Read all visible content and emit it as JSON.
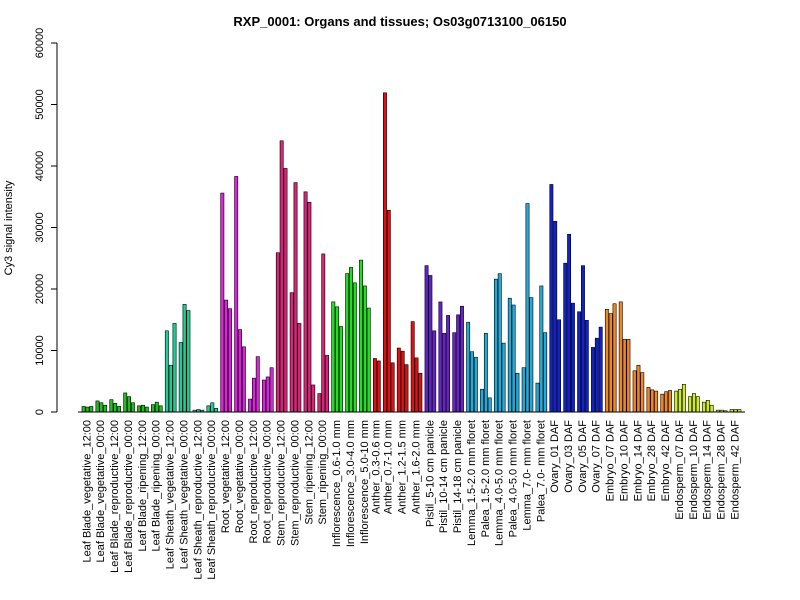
{
  "chart_data": {
    "type": "bar",
    "title": "RXP_0001: Organs and tissues; Os03g0713100_06150",
    "ylabel": "Cy3 signal intensity",
    "xlabel": "",
    "ylim": [
      0,
      60000
    ],
    "yticks": [
      0,
      10000,
      20000,
      30000,
      40000,
      50000,
      60000
    ],
    "grid": false,
    "groups": [
      {
        "label": "Leaf Blade_vegetative_12:00",
        "color": "#22bb22",
        "values": [
          900,
          800,
          900
        ]
      },
      {
        "label": "Leaf Blade_vegetative_00:00",
        "color": "#22bb22",
        "values": [
          1800,
          1500,
          1100
        ]
      },
      {
        "label": "Leaf Blade_reproductive_12:00",
        "color": "#22bb22",
        "values": [
          2000,
          1400,
          900
        ]
      },
      {
        "label": "Leaf Blade_reproductive_00:00",
        "color": "#22bb22",
        "values": [
          3100,
          2500,
          1500
        ]
      },
      {
        "label": "Leaf Blade_ripening_12:00",
        "color": "#22bb22",
        "values": [
          1000,
          1100,
          800
        ]
      },
      {
        "label": "Leaf Blade_ripening_00:00",
        "color": "#22bb22",
        "values": [
          1200,
          1600,
          1000
        ]
      },
      {
        "label": "Leaf Sheath_vegetative_12:00",
        "color": "#22cc99",
        "values": [
          13200,
          7600,
          14400
        ]
      },
      {
        "label": "Leaf Sheath_vegetative_00:00",
        "color": "#22cc99",
        "values": [
          11300,
          17500,
          16500
        ]
      },
      {
        "label": "Leaf Sheath_reproductive_12:00",
        "color": "#22cc99",
        "values": [
          300,
          400,
          300
        ]
      },
      {
        "label": "Leaf Sheath_reproductive_00:00",
        "color": "#22cc99",
        "values": [
          1000,
          1500,
          600
        ]
      },
      {
        "label": "Root_vegetative_12:00",
        "color": "#dd22dd",
        "values": [
          35600,
          18200,
          16800
        ]
      },
      {
        "label": "Root_vegetative_00:00",
        "color": "#dd22dd",
        "values": [
          38300,
          13400,
          10600
        ]
      },
      {
        "label": "Root_reproductive_12:00",
        "color": "#dd22dd",
        "values": [
          2100,
          5500,
          9000
        ]
      },
      {
        "label": "Root_reproductive_00:00",
        "color": "#dd22dd",
        "values": [
          5200,
          5700,
          7200
        ]
      },
      {
        "label": "Stem_reproductive_12:00",
        "color": "#dd2277",
        "values": [
          25900,
          44100,
          39600
        ]
      },
      {
        "label": "Stem_reproductive_00:00",
        "color": "#dd2277",
        "values": [
          19400,
          37300,
          14400
        ]
      },
      {
        "label": "Stem_ripening_12:00",
        "color": "#dd2277",
        "values": [
          35800,
          34100,
          4400
        ]
      },
      {
        "label": "Stem_ripening_00:00",
        "color": "#dd2277",
        "values": [
          3000,
          25700,
          9200
        ]
      },
      {
        "label": "Inflorescence_0.6-1.0 mm",
        "color": "#22dd22",
        "values": [
          17900,
          17100,
          13900
        ]
      },
      {
        "label": "Inflorescence_3.0-4.0 mm",
        "color": "#22dd22",
        "values": [
          22500,
          23500,
          21000
        ]
      },
      {
        "label": "Inflorescence_5.0-10 mm",
        "color": "#22dd22",
        "values": [
          24700,
          20500,
          16900
        ]
      },
      {
        "label": "Anther_0.3-0.6 mm",
        "color": "#dd1111",
        "values": [
          8700,
          8300
        ]
      },
      {
        "label": "Anther_0.7-1.0 mm",
        "color": "#dd1111",
        "values": [
          51900,
          32800,
          8000
        ]
      },
      {
        "label": "Anther_1.2-1.5 mm",
        "color": "#dd1111",
        "values": [
          10400,
          9900,
          7700
        ]
      },
      {
        "label": "Anther_1.6-2.0 mm",
        "color": "#dd1111",
        "values": [
          14700,
          8800,
          6300
        ]
      },
      {
        "label": "Pistil_5-10 cm panicle",
        "color": "#6622cc",
        "values": [
          23800,
          22200,
          13200
        ]
      },
      {
        "label": "Pistil_10-14 cm panicle",
        "color": "#6622cc",
        "values": [
          17900,
          12800,
          15700
        ]
      },
      {
        "label": "Pistil_14-18 cm panicle",
        "color": "#6622cc",
        "values": [
          12900,
          15800,
          17200
        ]
      },
      {
        "label": "Lemma_1.5-2.0 mm floret",
        "color": "#22aadd",
        "values": [
          14600,
          9800,
          8900
        ]
      },
      {
        "label": "Palea_1.5-2.0 mm floret",
        "color": "#22aadd",
        "values": [
          3700,
          12800,
          2300
        ]
      },
      {
        "label": "Lemma_4.0-5.0 mm floret",
        "color": "#22aadd",
        "values": [
          21600,
          22500,
          11200
        ]
      },
      {
        "label": "Palea_4.0-5.0 mm floret",
        "color": "#22aadd",
        "values": [
          18500,
          17400,
          6300
        ]
      },
      {
        "label": "Lemma_7.0- mm floret",
        "color": "#22aadd",
        "values": [
          7200,
          33900,
          18600
        ]
      },
      {
        "label": "Palea_7.0- mm floret",
        "color": "#22aadd",
        "values": [
          4700,
          20500,
          12900
        ]
      },
      {
        "label": "Ovary_01 DAF",
        "color": "#1122cc",
        "values": [
          37000,
          31000,
          15000
        ]
      },
      {
        "label": "Ovary_03 DAF",
        "color": "#1122cc",
        "values": [
          24200,
          28900,
          17700
        ]
      },
      {
        "label": "Ovary_05 DAF",
        "color": "#1122cc",
        "values": [
          16300,
          23800,
          14900
        ]
      },
      {
        "label": "Ovary_07 DAF",
        "color": "#1122cc",
        "values": [
          10500,
          12000,
          13800
        ]
      },
      {
        "label": "Embryo_07 DAF",
        "color": "#ee8822",
        "values": [
          16700,
          16000,
          17600
        ]
      },
      {
        "label": "Embryo_10 DAF",
        "color": "#ee8822",
        "values": [
          17900,
          11800,
          11800
        ]
      },
      {
        "label": "Embryo_14 DAF",
        "color": "#ee8822",
        "values": [
          6700,
          7600,
          6400
        ]
      },
      {
        "label": "Embryo_28 DAF",
        "color": "#ee8822",
        "values": [
          4000,
          3600,
          3400
        ]
      },
      {
        "label": "Embryo_42 DAF",
        "color": "#ee8822",
        "values": [
          2900,
          3300,
          3500
        ]
      },
      {
        "label": "Endosperm_07 DAF",
        "color": "#ccee22",
        "values": [
          3400,
          3700,
          4500
        ]
      },
      {
        "label": "Endosperm_10 DAF",
        "color": "#ccee22",
        "values": [
          2500,
          3000,
          2500
        ]
      },
      {
        "label": "Endosperm_14 DAF",
        "color": "#ccee22",
        "values": [
          1600,
          1900,
          1100
        ]
      },
      {
        "label": "Endosperm_28 DAF",
        "color": "#ccee22",
        "values": [
          300,
          300,
          200
        ]
      },
      {
        "label": "Endosperm_42 DAF",
        "color": "#ccee22",
        "values": [
          400,
          400,
          400
        ]
      }
    ]
  }
}
